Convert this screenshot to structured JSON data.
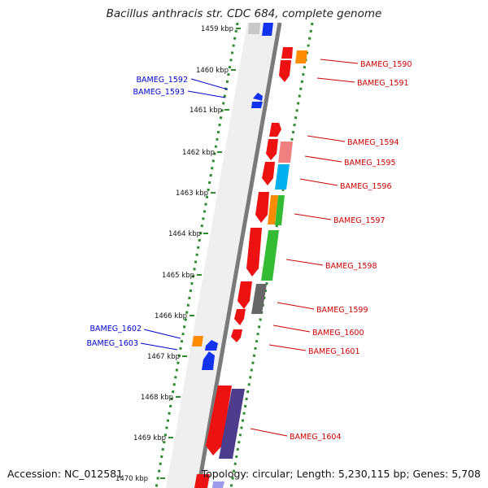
{
  "title": "Bacillus anthracis str. CDC 684, complete genome",
  "accession_text": "Accession: NC_012581",
  "summary_text": "Topology: circular; Length: 5,230,115 bp; Genes: 5,708",
  "colors": {
    "backbone": "#7a7a7a",
    "dotted_ring": "#2e8b2e",
    "forward_label": "#cc0000",
    "reverse_label": "#0000cc",
    "red_gene": "#ee1111",
    "blue_gene": "#1133ee",
    "orange_gene": "#ff8c00",
    "cyan_gene": "#00b0ee",
    "green_gene": "#33bb33",
    "grey_gene": "#666666",
    "pink_gene": "#f07f7f",
    "purple_gene": "#4b3d8b"
  },
  "scale_labels": [
    "1459 kbp",
    "1460 kbp",
    "1461 kbp",
    "1462 kbp",
    "1463 kbp",
    "1464 kbp",
    "1465 kbp",
    "1466 kbp",
    "1467 kbp",
    "1468 kbp",
    "1469 kbp",
    "1470 kbp"
  ],
  "forward_labels": [
    "BAMEG_1590",
    "BAMEG_1591",
    "BAMEG_1594",
    "BAMEG_1595",
    "BAMEG_1596",
    "BAMEG_1597",
    "BAMEG_1598",
    "BAMEG_1599",
    "BAMEG_1600",
    "BAMEG_1601",
    "BAMEG_1604"
  ],
  "reverse_labels": [
    "BAMEG_1592",
    "BAMEG_1593",
    "BAMEG_1602",
    "BAMEG_1603"
  ]
}
